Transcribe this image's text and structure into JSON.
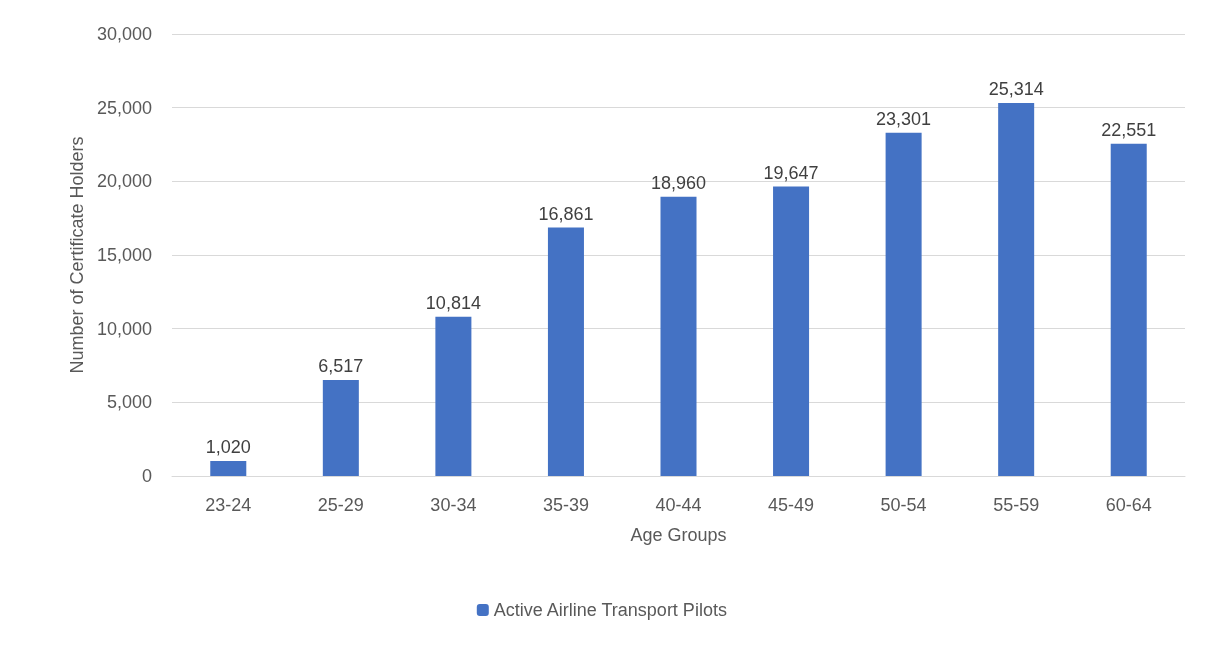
{
  "chart_data": {
    "type": "bar",
    "xlabel": "Age Groups",
    "ylabel": "Number of Certificate Holders",
    "categories": [
      "23-24",
      "25-29",
      "30-34",
      "35-39",
      "40-44",
      "45-49",
      "50-54",
      "55-59",
      "60-64"
    ],
    "series": [
      {
        "name": "Active Airline Transport Pilots",
        "color": "#4472c4",
        "values": [
          1020,
          6517,
          10814,
          16861,
          18960,
          19647,
          23301,
          25314,
          22551
        ],
        "value_labels": [
          "1,020",
          "6,517",
          "10,814",
          "16,861",
          "18,960",
          "19,647",
          "23,301",
          "25,314",
          "22,551"
        ]
      }
    ],
    "ylim": [
      0,
      30000
    ],
    "yticks": [
      0,
      {
        "value": 5000,
        "label": "5,000"
      },
      {
        "value": 10000,
        "label": "10,000"
      },
      {
        "value": 15000,
        "label": "15,000"
      },
      {
        "value": 20000,
        "label": "20,000"
      },
      {
        "value": 25000,
        "label": "25,000"
      },
      {
        "value": 30000,
        "label": "30,000"
      }
    ],
    "grid": "y",
    "legend": "bottom"
  }
}
